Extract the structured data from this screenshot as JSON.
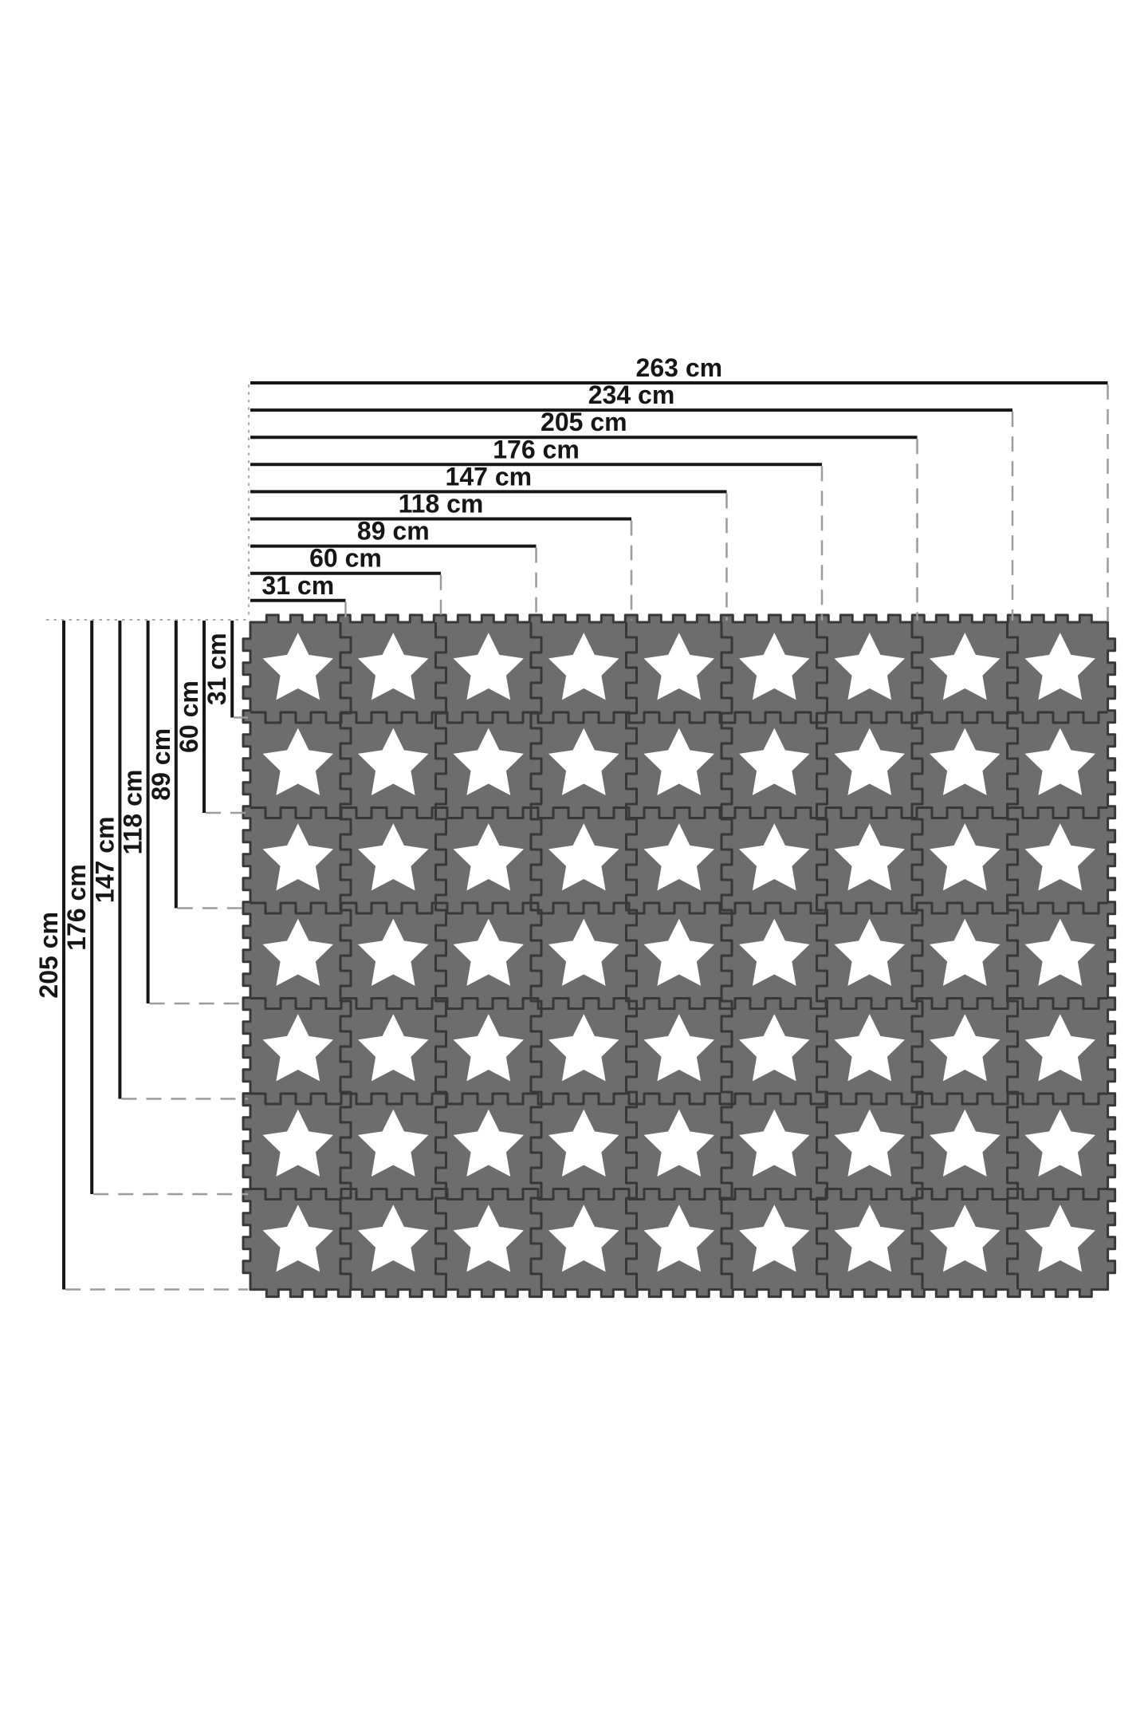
{
  "diagram": {
    "description": "Interlocking foam play mat assembly with stacked width and height dimension lines",
    "units": "cm"
  },
  "dimensions": {
    "horizontal": [
      {
        "label": "263 cm",
        "value": 263
      },
      {
        "label": "234 cm",
        "value": 234
      },
      {
        "label": "205 cm",
        "value": 205
      },
      {
        "label": "176 cm",
        "value": 176
      },
      {
        "label": "147 cm",
        "value": 147
      },
      {
        "label": "118 cm",
        "value": 118
      },
      {
        "label": "89 cm",
        "value": 89
      },
      {
        "label": "60 cm",
        "value": 60
      },
      {
        "label": "31 cm",
        "value": 31
      }
    ],
    "vertical": [
      {
        "label": "205 cm",
        "value": 205
      },
      {
        "label": "176 cm",
        "value": 176
      },
      {
        "label": "147 cm",
        "value": 147
      },
      {
        "label": "118 cm",
        "value": 118
      },
      {
        "label": "89 cm",
        "value": 89
      },
      {
        "label": "60 cm",
        "value": 60
      },
      {
        "label": "31 cm",
        "value": 31
      }
    ]
  },
  "mat": {
    "columns": 9,
    "rows": 7,
    "tile_motif": "white-star"
  },
  "colors": {
    "background": "#ffffff",
    "tile": "#6d6d6d",
    "seam": "#383838",
    "star": "#ffffff",
    "dimension_line": "#161616",
    "label_text": "#161616",
    "dash_line": "#9c9c9c",
    "dot_line": "#ababab"
  }
}
